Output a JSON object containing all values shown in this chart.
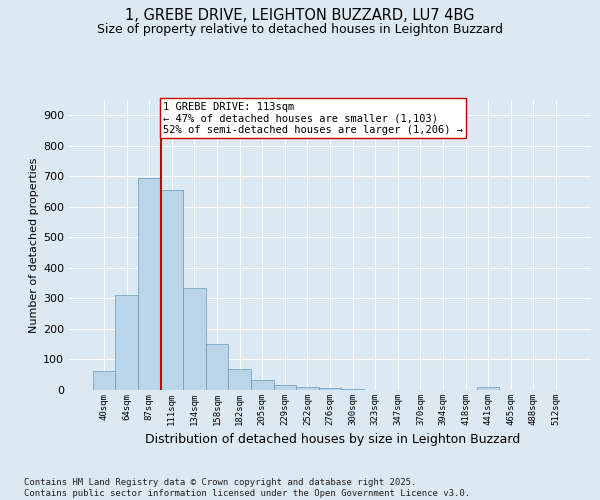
{
  "title1": "1, GREBE DRIVE, LEIGHTON BUZZARD, LU7 4BG",
  "title2": "Size of property relative to detached houses in Leighton Buzzard",
  "xlabel": "Distribution of detached houses by size in Leighton Buzzard",
  "ylabel": "Number of detached properties",
  "categories": [
    "40sqm",
    "64sqm",
    "87sqm",
    "111sqm",
    "134sqm",
    "158sqm",
    "182sqm",
    "205sqm",
    "229sqm",
    "252sqm",
    "276sqm",
    "300sqm",
    "323sqm",
    "347sqm",
    "370sqm",
    "394sqm",
    "418sqm",
    "441sqm",
    "465sqm",
    "488sqm",
    "512sqm"
  ],
  "values": [
    62,
    312,
    695,
    656,
    335,
    152,
    68,
    33,
    18,
    10,
    8,
    3,
    0,
    0,
    0,
    0,
    0,
    10,
    0,
    0,
    0
  ],
  "bar_color": "#bad4ea",
  "bar_edge_color": "#6699bb",
  "vline_index": 2.5,
  "vline_color": "#cc0000",
  "annotation_text": "1 GREBE DRIVE: 113sqm\n← 47% of detached houses are smaller (1,103)\n52% of semi-detached houses are larger (1,206) →",
  "annotation_box_facecolor": "#ffffff",
  "annotation_box_edgecolor": "#cc0000",
  "ylim": [
    0,
    950
  ],
  "yticks": [
    0,
    100,
    200,
    300,
    400,
    500,
    600,
    700,
    800,
    900
  ],
  "bg_color": "#dce8f2",
  "grid_color": "#ffffff",
  "footer": "Contains HM Land Registry data © Crown copyright and database right 2025.\nContains public sector information licensed under the Open Government Licence v3.0.",
  "title_fontsize": 10.5,
  "subtitle_fontsize": 9,
  "annotation_fontsize": 7.5,
  "ylabel_fontsize": 8,
  "xlabel_fontsize": 9,
  "ytick_fontsize": 8,
  "xtick_fontsize": 6.5,
  "footer_fontsize": 6.5
}
